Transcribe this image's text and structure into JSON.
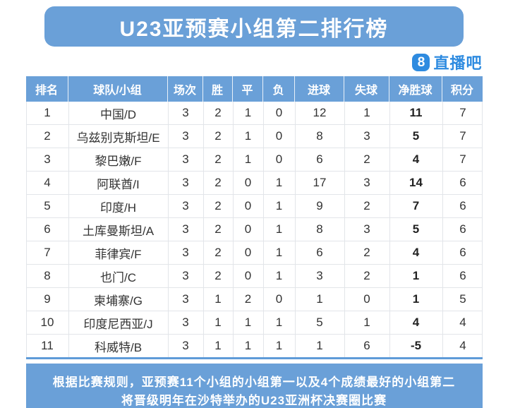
{
  "title": "U23亚预赛小组第二排行榜",
  "logo": {
    "badge": "8",
    "name": "直播吧"
  },
  "chart_data": {
    "type": "table",
    "title": "U23亚预赛小组第二排行榜",
    "columns": [
      "排名",
      "球队/小组",
      "场次",
      "胜",
      "平",
      "负",
      "进球",
      "失球",
      "净胜球",
      "积分"
    ],
    "rows": [
      {
        "rank": "1",
        "team": "中国/D",
        "played": "3",
        "win": "2",
        "draw": "1",
        "loss": "0",
        "gf": "12",
        "ga": "1",
        "gd": "11",
        "pts": "7"
      },
      {
        "rank": "2",
        "team": "乌兹别克斯坦/E",
        "played": "3",
        "win": "2",
        "draw": "1",
        "loss": "0",
        "gf": "8",
        "ga": "3",
        "gd": "5",
        "pts": "7"
      },
      {
        "rank": "3",
        "team": "黎巴嫩/F",
        "played": "3",
        "win": "2",
        "draw": "1",
        "loss": "0",
        "gf": "6",
        "ga": "2",
        "gd": "4",
        "pts": "7"
      },
      {
        "rank": "4",
        "team": "阿联酋/I",
        "played": "3",
        "win": "2",
        "draw": "0",
        "loss": "1",
        "gf": "17",
        "ga": "3",
        "gd": "14",
        "pts": "6"
      },
      {
        "rank": "5",
        "team": "印度/H",
        "played": "3",
        "win": "2",
        "draw": "0",
        "loss": "1",
        "gf": "9",
        "ga": "2",
        "gd": "7",
        "pts": "6"
      },
      {
        "rank": "6",
        "team": "土库曼斯坦/A",
        "played": "3",
        "win": "2",
        "draw": "0",
        "loss": "1",
        "gf": "8",
        "ga": "3",
        "gd": "5",
        "pts": "6"
      },
      {
        "rank": "7",
        "team": "菲律宾/F",
        "played": "3",
        "win": "2",
        "draw": "0",
        "loss": "1",
        "gf": "6",
        "ga": "2",
        "gd": "4",
        "pts": "6"
      },
      {
        "rank": "8",
        "team": "也门/C",
        "played": "3",
        "win": "2",
        "draw": "0",
        "loss": "1",
        "gf": "3",
        "ga": "2",
        "gd": "1",
        "pts": "6"
      },
      {
        "rank": "9",
        "team": "柬埔寨/G",
        "played": "3",
        "win": "1",
        "draw": "2",
        "loss": "0",
        "gf": "1",
        "ga": "0",
        "gd": "1",
        "pts": "5"
      },
      {
        "rank": "10",
        "team": "印度尼西亚/J",
        "played": "3",
        "win": "1",
        "draw": "1",
        "loss": "1",
        "gf": "5",
        "ga": "1",
        "gd": "4",
        "pts": "4"
      },
      {
        "rank": "11",
        "team": "科威特/B",
        "played": "3",
        "win": "1",
        "draw": "1",
        "loss": "1",
        "gf": "1",
        "ga": "6",
        "gd": "-5",
        "pts": "4"
      }
    ]
  },
  "footer": {
    "line1": "根据比赛规则，亚预赛11个小组的小组第一以及4个成绩最好的小组第二",
    "line2": "将晋级明年在沙特举办的U23亚洲杯决赛圈比赛"
  },
  "colors": {
    "banner_blue": "#6aa0d8",
    "table_header_blue": "#6aa0d8",
    "footer_blue": "#6aa0d8",
    "logo_blue": "#2e8be0",
    "table_bottom_border_blue": "#5e9bd8",
    "grid_line": "#e2e5e9",
    "body_text": "#333333",
    "header_text": "#ffffff"
  }
}
